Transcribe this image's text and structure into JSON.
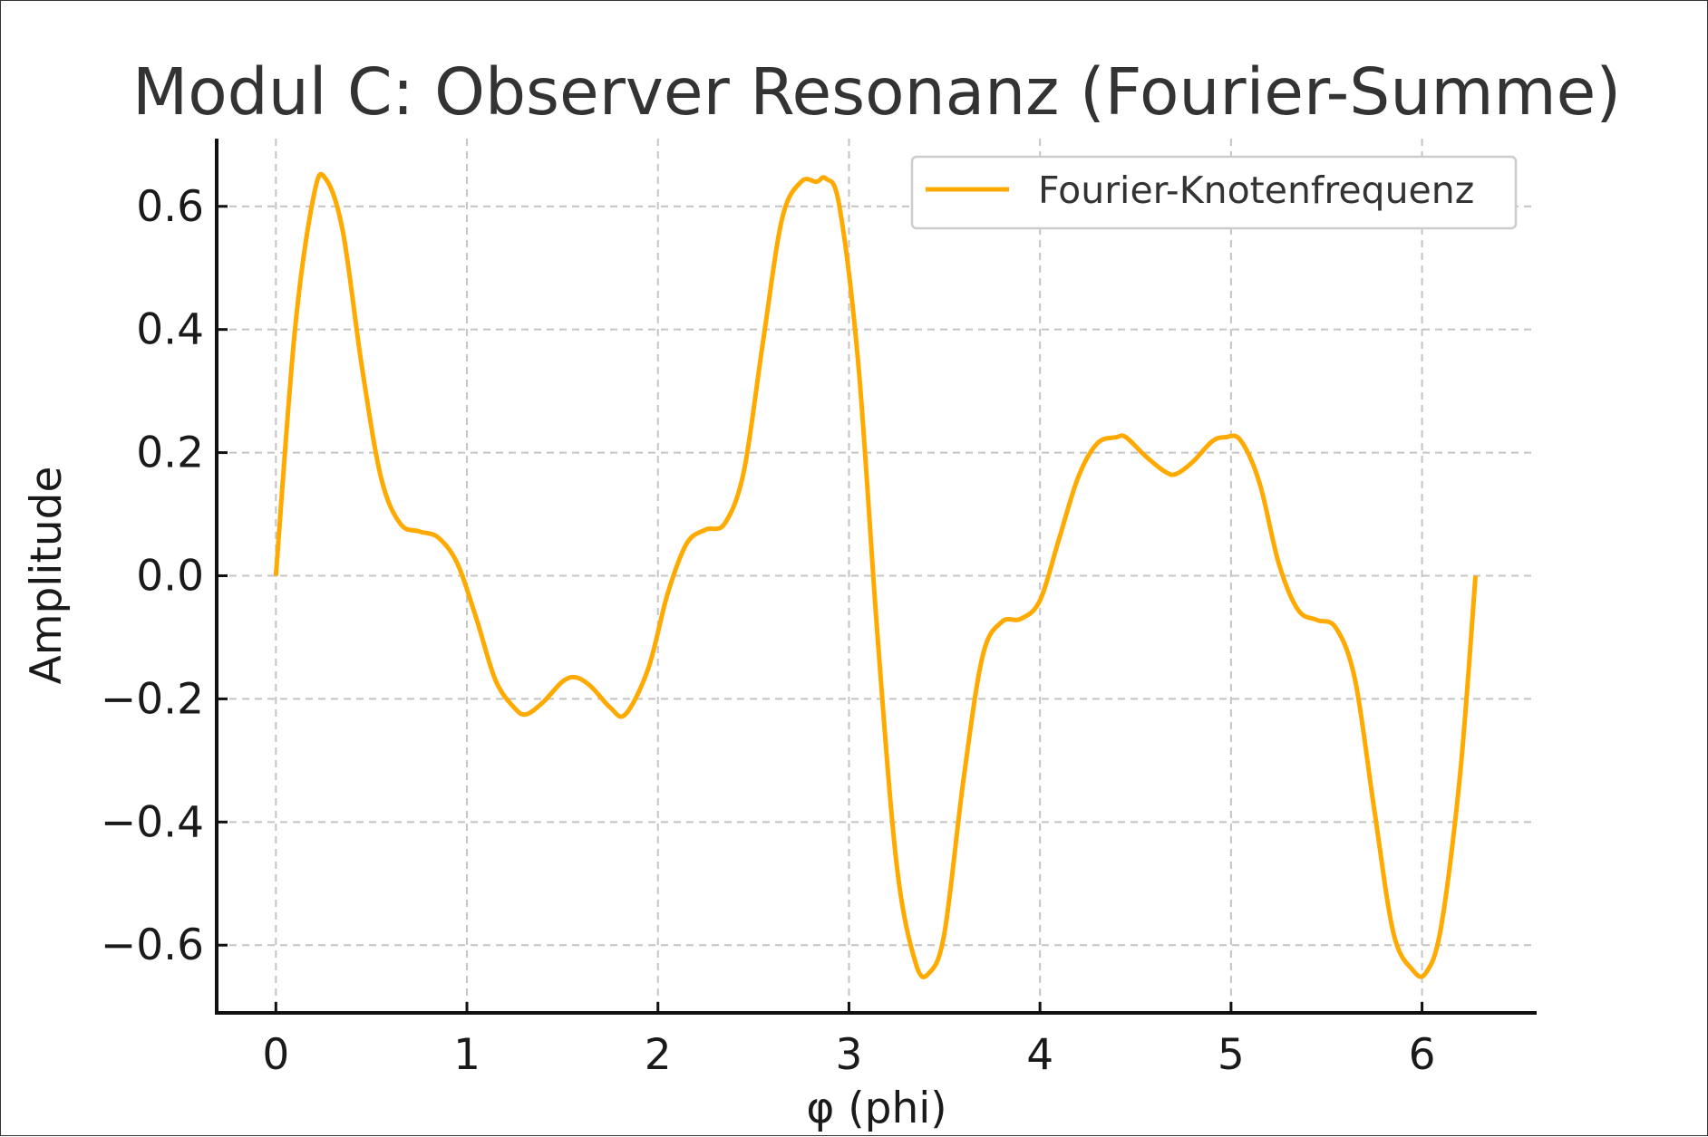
{
  "chart_data": {
    "type": "line",
    "title": "Modul C: Observer Resonanz (Fourier-Summe)",
    "xlabel": "φ (phi)",
    "ylabel": "Amplitude",
    "xlim": [
      -0.31,
      6.6
    ],
    "ylim": [
      -0.71,
      0.71
    ],
    "xticks": [
      0,
      1,
      2,
      3,
      4,
      5,
      6
    ],
    "xtick_labels": [
      "0",
      "1",
      "2",
      "3",
      "4",
      "5",
      "6"
    ],
    "yticks": [
      0.6,
      0.4,
      0.2,
      0.0,
      -0.2,
      -0.4,
      -0.6
    ],
    "ytick_labels": [
      "0.6",
      "0.4",
      "0.2",
      "0.0",
      "−0.2",
      "−0.4",
      "−0.6"
    ],
    "grid": true,
    "legend_position": "upper right",
    "series": [
      {
        "name": "Fourier-Knotenfrequenz",
        "color": "#FFAA00",
        "x": [
          0,
          0.1,
          0.2,
          0.26,
          0.35,
          0.45,
          0.55,
          0.65,
          0.75,
          0.85,
          0.95,
          1.05,
          1.15,
          1.25,
          1.31,
          1.4,
          1.5,
          1.57,
          1.65,
          1.75,
          1.83,
          1.95,
          2.05,
          2.15,
          2.25,
          2.35,
          2.45,
          2.55,
          2.65,
          2.75,
          2.83,
          2.88,
          2.95,
          3.05,
          3.15,
          3.25,
          3.35,
          3.42,
          3.5,
          3.6,
          3.7,
          3.8,
          3.9,
          4.0,
          4.1,
          4.2,
          4.3,
          4.4,
          4.45,
          4.55,
          4.65,
          4.71,
          4.8,
          4.9,
          4.97,
          5.05,
          5.15,
          5.25,
          5.35,
          5.45,
          5.55,
          5.65,
          5.75,
          5.85,
          5.95,
          6.02,
          6.1,
          6.2,
          6.28
        ],
        "y": [
          0.0,
          0.4,
          0.62,
          0.645,
          0.56,
          0.34,
          0.16,
          0.085,
          0.072,
          0.062,
          0.02,
          -0.07,
          -0.17,
          -0.215,
          -0.225,
          -0.205,
          -0.172,
          -0.165,
          -0.18,
          -0.214,
          -0.225,
          -0.15,
          -0.03,
          0.052,
          0.075,
          0.085,
          0.17,
          0.38,
          0.58,
          0.64,
          0.64,
          0.645,
          0.6,
          0.34,
          -0.1,
          -0.47,
          -0.63,
          -0.645,
          -0.58,
          -0.33,
          -0.13,
          -0.075,
          -0.07,
          -0.04,
          0.06,
          0.16,
          0.215,
          0.225,
          0.225,
          0.195,
          0.17,
          0.165,
          0.185,
          0.218,
          0.225,
          0.22,
          0.15,
          0.02,
          -0.055,
          -0.072,
          -0.085,
          -0.17,
          -0.38,
          -0.58,
          -0.64,
          -0.645,
          -0.57,
          -0.32,
          0.0
        ]
      }
    ]
  }
}
